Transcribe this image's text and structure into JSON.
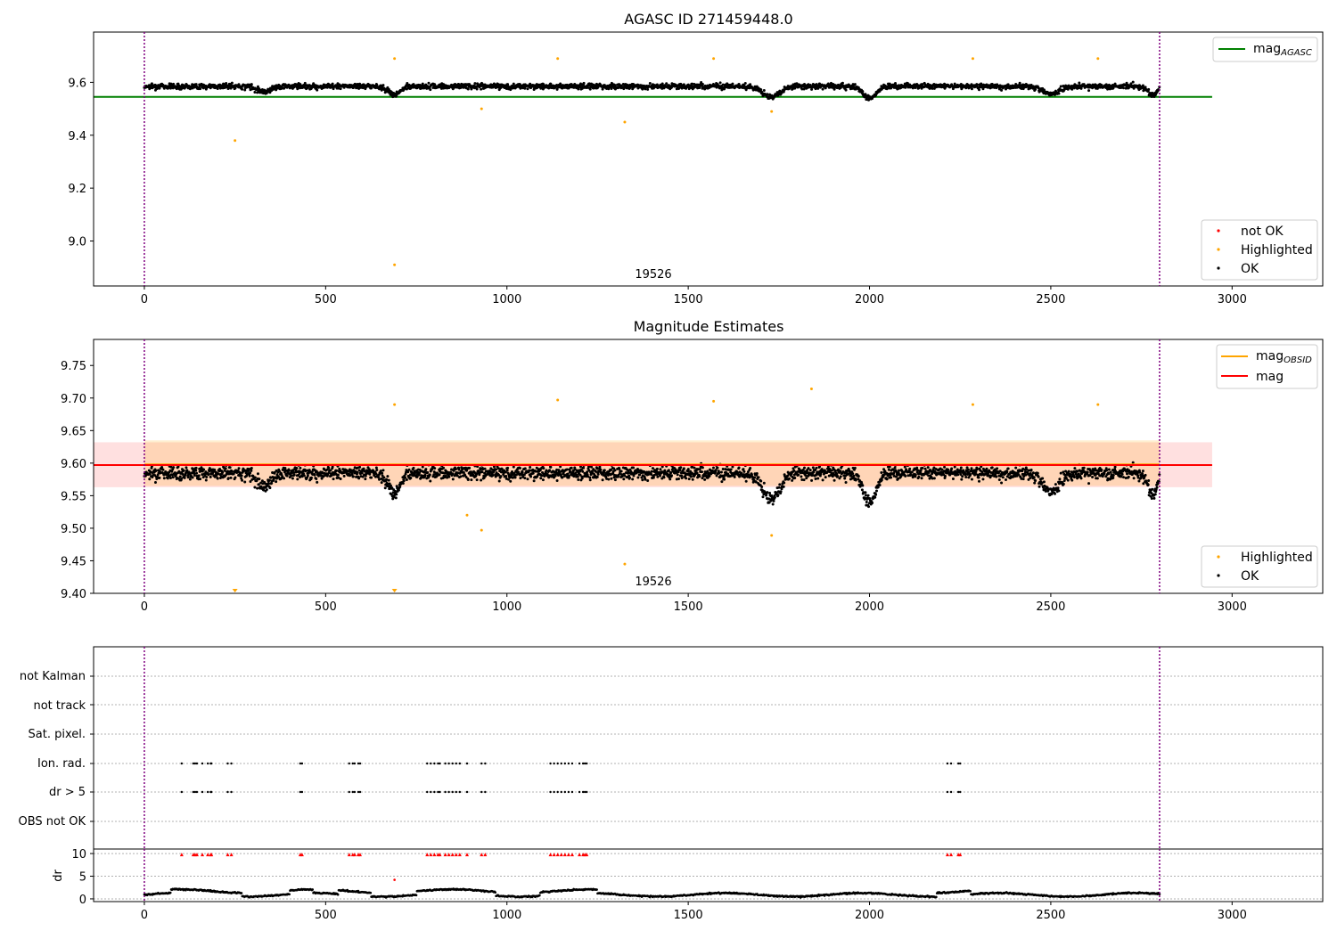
{
  "chart_data": [
    {
      "type": "scatter",
      "title": "AGASC ID 271459448.0",
      "xlim": [
        -140,
        3250
      ],
      "ylim": [
        8.83,
        9.79
      ],
      "xticks": [
        "0",
        "500",
        "1000",
        "1500",
        "2000",
        "2500",
        "3000"
      ],
      "yticks": [
        "9.0",
        "9.2",
        "9.4",
        "9.6"
      ],
      "vlines_x": [
        0,
        2800
      ],
      "hline": {
        "name": "mag",
        "name_sub": "AGASC",
        "value": 9.545,
        "x_range": [
          -140,
          2945
        ],
        "color": "#008000"
      },
      "annotation": {
        "text": "19526",
        "x": 1400,
        "y": 8.86
      },
      "legend": [
        {
          "label": "not OK",
          "color": "#ff0000"
        },
        {
          "label": "Highlighted",
          "color": "#ffa500"
        },
        {
          "label": "OK",
          "color": "#000000"
        }
      ],
      "highlighted_points": [
        [
          250,
          9.38
        ],
        [
          690,
          8.91
        ],
        [
          690,
          9.69
        ],
        [
          930,
          9.5
        ],
        [
          1325,
          9.45
        ],
        [
          1730,
          9.49
        ],
        [
          1140,
          9.69
        ],
        [
          1570,
          9.69
        ],
        [
          2285,
          9.69
        ],
        [
          2630,
          9.69
        ]
      ]
    },
    {
      "type": "scatter",
      "title": "Magnitude Estimates",
      "xlim": [
        -140,
        3250
      ],
      "ylim": [
        9.4,
        9.79
      ],
      "xticks": [
        "0",
        "500",
        "1000",
        "1500",
        "2000",
        "2500",
        "3000"
      ],
      "yticks": [
        "9.40",
        "9.45",
        "9.50",
        "9.55",
        "9.60",
        "9.65",
        "9.70",
        "9.75"
      ],
      "vlines_x": [
        0,
        2800
      ],
      "mag_line": {
        "label": "mag",
        "value": 9.597,
        "band": [
          9.563,
          9.632
        ],
        "x_range": [
          -140,
          2945
        ],
        "color": "#ff0000"
      },
      "mag_obsid": {
        "label": "mag",
        "label_sub": "OBSID",
        "value": 9.598,
        "band": [
          9.565,
          9.635
        ],
        "x_range": [
          0,
          2800
        ],
        "color": "#ffa500"
      },
      "annotation": {
        "text": "19526",
        "x": 1400,
        "y": 9.415
      },
      "legend_top": [
        {
          "label": "mag",
          "sub": "OBSID",
          "color": "#ffa500"
        },
        {
          "label": "mag",
          "sub": "",
          "color": "#ff0000"
        }
      ],
      "legend_bottom": [
        {
          "label": "Highlighted",
          "color": "#ffa500"
        },
        {
          "label": "OK",
          "color": "#000000"
        }
      ],
      "highlighted_points": [
        [
          690,
          9.69
        ],
        [
          890,
          9.52
        ],
        [
          930,
          9.497
        ],
        [
          1325,
          9.445
        ],
        [
          1730,
          9.489
        ],
        [
          1140,
          9.697
        ],
        [
          1570,
          9.695
        ],
        [
          1840,
          9.714
        ],
        [
          2285,
          9.69
        ],
        [
          2630,
          9.69
        ]
      ],
      "clipped_points_x": [
        250,
        690
      ]
    },
    {
      "type": "scatter",
      "categories": [
        "not Kalman",
        "not track",
        "Sat. pixel.",
        "Ion. rad.",
        "dr > 5",
        "OBS not OK"
      ],
      "xlim": [
        -140,
        3250
      ],
      "xticks": [
        "0",
        "500",
        "1000",
        "1500",
        "2000",
        "2500",
        "3000"
      ],
      "vlines_x": [
        0,
        2800
      ],
      "flag_x": [
        103,
        135,
        140,
        145,
        160,
        175,
        183,
        185,
        230,
        240,
        430,
        435,
        565,
        575,
        580,
        590,
        595,
        780,
        790,
        800,
        810,
        815,
        830,
        840,
        850,
        860,
        870,
        890,
        930,
        940,
        1120,
        1130,
        1140,
        1150,
        1160,
        1170,
        1180,
        1200,
        1210,
        1215,
        1220,
        2215,
        2225,
        2245,
        2250
      ],
      "flag_rows": [
        "Ion. rad.",
        "dr > 5"
      ]
    },
    {
      "type": "scatter",
      "ylabel": "dr",
      "xlim": [
        -140,
        3250
      ],
      "ylim": [
        -0.6,
        11
      ],
      "xticks": [
        "0",
        "500",
        "1000",
        "1500",
        "2000",
        "2500",
        "3000"
      ],
      "yticks": [
        "0",
        "5",
        "10"
      ],
      "vlines_x": [
        0,
        2800
      ],
      "outlier": [
        690,
        4.2
      ]
    }
  ]
}
